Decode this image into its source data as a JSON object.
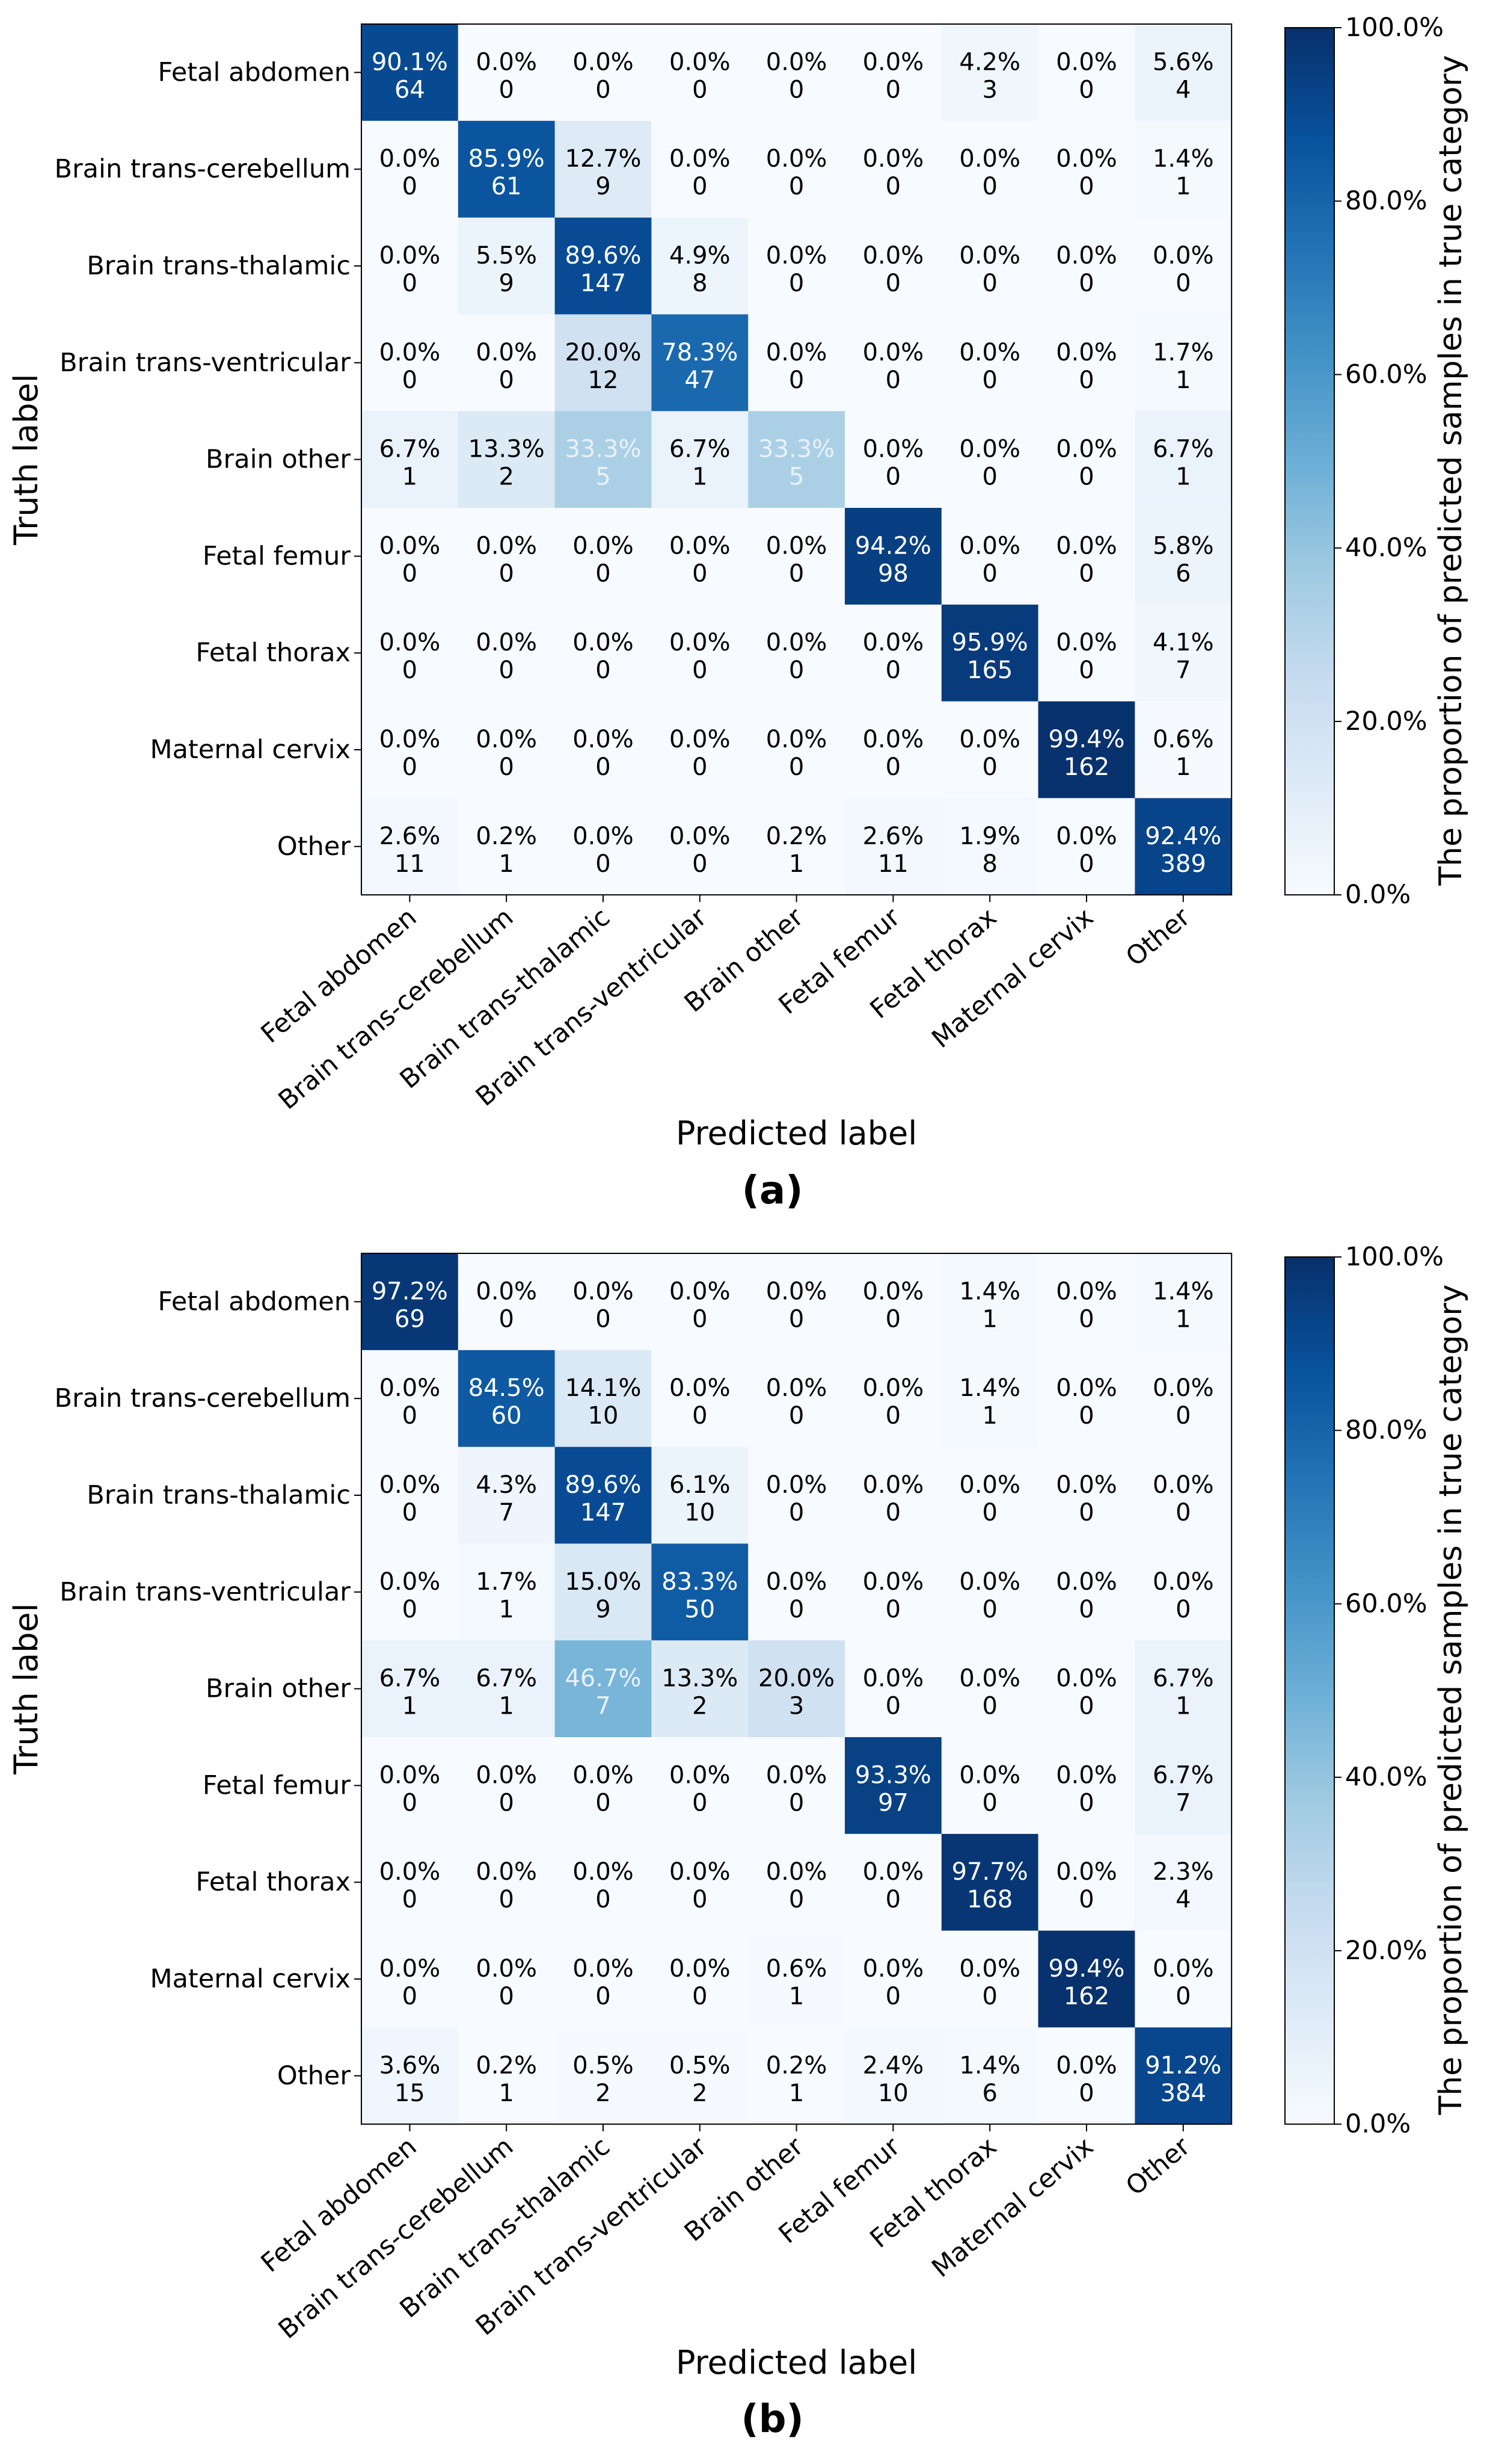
{
  "chart_data": [
    {
      "type": "heatmap",
      "panel_label": "(a)",
      "xlabel": "Predicted label",
      "ylabel": "Truth label",
      "x_categories": [
        "Fetal abdomen",
        "Brain trans-cerebellum",
        "Brain trans-thalamic",
        "Brain trans-ventricular",
        "Brain other",
        "Fetal femur",
        "Fetal thorax",
        "Maternal cervix",
        "Other"
      ],
      "y_categories": [
        "Fetal abdomen",
        "Brain trans-cerebellum",
        "Brain trans-thalamic",
        "Brain trans-ventricular",
        "Brain other",
        "Fetal femur",
        "Fetal thorax",
        "Maternal cervix",
        "Other"
      ],
      "colorbar_label": "The proportion of predicted samples in true category",
      "colorbar_ticks": [
        "0.0%",
        "20.0%",
        "40.0%",
        "60.0%",
        "80.0%",
        "100.0%"
      ],
      "colorbar_range": [
        0,
        100
      ],
      "colormap": "Blues",
      "percent": [
        [
          90.1,
          0.0,
          0.0,
          0.0,
          0.0,
          0.0,
          4.2,
          0.0,
          5.6
        ],
        [
          0.0,
          85.9,
          12.7,
          0.0,
          0.0,
          0.0,
          0.0,
          0.0,
          1.4
        ],
        [
          0.0,
          5.5,
          89.6,
          4.9,
          0.0,
          0.0,
          0.0,
          0.0,
          0.0
        ],
        [
          0.0,
          0.0,
          20.0,
          78.3,
          0.0,
          0.0,
          0.0,
          0.0,
          1.7
        ],
        [
          6.7,
          13.3,
          33.3,
          6.7,
          33.3,
          0.0,
          0.0,
          0.0,
          6.7
        ],
        [
          0.0,
          0.0,
          0.0,
          0.0,
          0.0,
          94.2,
          0.0,
          0.0,
          5.8
        ],
        [
          0.0,
          0.0,
          0.0,
          0.0,
          0.0,
          0.0,
          95.9,
          0.0,
          4.1
        ],
        [
          0.0,
          0.0,
          0.0,
          0.0,
          0.0,
          0.0,
          0.0,
          99.4,
          0.6
        ],
        [
          2.6,
          0.2,
          0.0,
          0.0,
          0.2,
          2.6,
          1.9,
          0.0,
          92.4
        ]
      ],
      "counts": [
        [
          64,
          0,
          0,
          0,
          0,
          0,
          3,
          0,
          4
        ],
        [
          0,
          61,
          9,
          0,
          0,
          0,
          0,
          0,
          1
        ],
        [
          0,
          9,
          147,
          8,
          0,
          0,
          0,
          0,
          0
        ],
        [
          0,
          0,
          12,
          47,
          0,
          0,
          0,
          0,
          1
        ],
        [
          1,
          2,
          5,
          1,
          5,
          0,
          0,
          0,
          1
        ],
        [
          0,
          0,
          0,
          0,
          0,
          98,
          0,
          0,
          6
        ],
        [
          0,
          0,
          0,
          0,
          0,
          0,
          165,
          0,
          7
        ],
        [
          0,
          0,
          0,
          0,
          0,
          0,
          0,
          162,
          1
        ],
        [
          11,
          1,
          0,
          0,
          1,
          11,
          8,
          0,
          389
        ]
      ]
    },
    {
      "type": "heatmap",
      "panel_label": "(b)",
      "xlabel": "Predicted label",
      "ylabel": "Truth label",
      "x_categories": [
        "Fetal abdomen",
        "Brain trans-cerebellum",
        "Brain trans-thalamic",
        "Brain trans-ventricular",
        "Brain other",
        "Fetal femur",
        "Fetal thorax",
        "Maternal cervix",
        "Other"
      ],
      "y_categories": [
        "Fetal abdomen",
        "Brain trans-cerebellum",
        "Brain trans-thalamic",
        "Brain trans-ventricular",
        "Brain other",
        "Fetal femur",
        "Fetal thorax",
        "Maternal cervix",
        "Other"
      ],
      "colorbar_label": "The proportion of predicted samples in true category",
      "colorbar_ticks": [
        "0.0%",
        "20.0%",
        "40.0%",
        "60.0%",
        "80.0%",
        "100.0%"
      ],
      "colorbar_range": [
        0,
        100
      ],
      "colormap": "Blues",
      "percent": [
        [
          97.2,
          0.0,
          0.0,
          0.0,
          0.0,
          0.0,
          1.4,
          0.0,
          1.4
        ],
        [
          0.0,
          84.5,
          14.1,
          0.0,
          0.0,
          0.0,
          1.4,
          0.0,
          0.0
        ],
        [
          0.0,
          4.3,
          89.6,
          6.1,
          0.0,
          0.0,
          0.0,
          0.0,
          0.0
        ],
        [
          0.0,
          1.7,
          15.0,
          83.3,
          0.0,
          0.0,
          0.0,
          0.0,
          0.0
        ],
        [
          6.7,
          6.7,
          46.7,
          13.3,
          20.0,
          0.0,
          0.0,
          0.0,
          6.7
        ],
        [
          0.0,
          0.0,
          0.0,
          0.0,
          0.0,
          93.3,
          0.0,
          0.0,
          6.7
        ],
        [
          0.0,
          0.0,
          0.0,
          0.0,
          0.0,
          0.0,
          97.7,
          0.0,
          2.3
        ],
        [
          0.0,
          0.0,
          0.0,
          0.0,
          0.6,
          0.0,
          0.0,
          99.4,
          0.0
        ],
        [
          3.6,
          0.2,
          0.5,
          0.5,
          0.2,
          2.4,
          1.4,
          0.0,
          91.2
        ]
      ],
      "counts": [
        [
          69,
          0,
          0,
          0,
          0,
          0,
          1,
          0,
          1
        ],
        [
          0,
          60,
          10,
          0,
          0,
          0,
          1,
          0,
          0
        ],
        [
          0,
          7,
          147,
          10,
          0,
          0,
          0,
          0,
          0
        ],
        [
          0,
          1,
          9,
          50,
          0,
          0,
          0,
          0,
          0
        ],
        [
          1,
          1,
          7,
          2,
          3,
          0,
          0,
          0,
          1
        ],
        [
          0,
          0,
          0,
          0,
          0,
          97,
          0,
          0,
          7
        ],
        [
          0,
          0,
          0,
          0,
          0,
          0,
          168,
          0,
          4
        ],
        [
          0,
          0,
          0,
          0,
          1,
          0,
          0,
          162,
          0
        ],
        [
          15,
          1,
          2,
          2,
          1,
          10,
          6,
          0,
          384
        ]
      ]
    }
  ]
}
